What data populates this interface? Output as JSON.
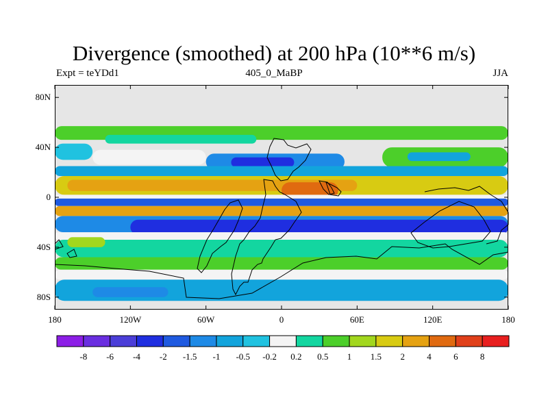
{
  "header": {
    "title": "Divergence (smoothed) at 200 hPa (10**6 m/s)",
    "left_label": "Expt = teYDd1",
    "center_label": "405_0_MaBP",
    "right_label": "JJA"
  },
  "chart_data": {
    "type": "heatmap",
    "title": "Divergence (smoothed) at 200 hPa (10**6 m/s)",
    "subtitle_left": "Expt = teYDd1",
    "subtitle_center": "405_0_MaBP",
    "subtitle_right": "JJA",
    "x_range": [
      -180,
      180
    ],
    "y_range": [
      -90,
      90
    ],
    "x_ticks": [
      {
        "value": -180,
        "label": "180"
      },
      {
        "value": -120,
        "label": "120W"
      },
      {
        "value": -60,
        "label": "60W"
      },
      {
        "value": 0,
        "label": "0"
      },
      {
        "value": 60,
        "label": "60E"
      },
      {
        "value": 120,
        "label": "120E"
      },
      {
        "value": 180,
        "label": "180"
      }
    ],
    "y_ticks": [
      {
        "value": 80,
        "label": "80N"
      },
      {
        "value": 40,
        "label": "40N"
      },
      {
        "value": 0,
        "label": "0"
      },
      {
        "value": -40,
        "label": "40S"
      },
      {
        "value": -80,
        "label": "80S"
      }
    ],
    "missing_color": "#e6e6e6",
    "contour_levels": [
      {
        "level": "-8",
        "color": "#8c1ee6"
      },
      {
        "level": "-6",
        "color": "#6a2ee0"
      },
      {
        "level": "-4",
        "color": "#4b3ed8"
      },
      {
        "level": "-2",
        "color": "#1f2ee0"
      },
      {
        "level": "-1.5",
        "color": "#1f5ae0"
      },
      {
        "level": "-1",
        "color": "#1e8ae6"
      },
      {
        "level": "-0.5",
        "color": "#12a4dc"
      },
      {
        "level": "-0.2",
        "color": "#20c2e0"
      },
      {
        "level": "0.2",
        "color": "#f4f4f4"
      },
      {
        "level": "0.5",
        "color": "#13d6a0"
      },
      {
        "level": "1",
        "color": "#4ccf2a"
      },
      {
        "level": "1.5",
        "color": "#a2d71e"
      },
      {
        "level": "2",
        "color": "#d8cb12"
      },
      {
        "level": "4",
        "color": "#e5a212"
      },
      {
        "level": "6",
        "color": "#e06a10"
      },
      {
        "level": "8",
        "color": "#e0401a"
      },
      {
        "level": "",
        "color": "#e81f1f"
      }
    ],
    "colorbar_labels": [
      "-8",
      "-6",
      "-4",
      "-2",
      "-1.5",
      "-1",
      "-0.5",
      "-0.2",
      "0.2",
      "0.5",
      "1",
      "1.5",
      "2",
      "4",
      "6",
      "8"
    ],
    "bands": [
      {
        "lat_top": 57,
        "lat_bottom": 46,
        "lon_from": -180,
        "lon_to": 180,
        "color": "#4ccf2a"
      },
      {
        "lat_top": 50,
        "lat_bottom": 43,
        "lon_from": -140,
        "lon_to": -20,
        "color": "#13d6a0"
      },
      {
        "lat_top": 43,
        "lat_bottom": 30,
        "lon_from": -180,
        "lon_to": -150,
        "color": "#20c2e0"
      },
      {
        "lat_top": 38,
        "lat_bottom": 26,
        "lon_from": -150,
        "lon_to": -60,
        "color": "#f4f4f4"
      },
      {
        "lat_top": 35,
        "lat_bottom": 22,
        "lon_from": -60,
        "lon_to": 50,
        "color": "#1e8ae6"
      },
      {
        "lat_top": 32,
        "lat_bottom": 24,
        "lon_from": -40,
        "lon_to": 10,
        "color": "#1f2ee0"
      },
      {
        "lat_top": 40,
        "lat_bottom": 24,
        "lon_from": 80,
        "lon_to": 180,
        "color": "#4ccf2a"
      },
      {
        "lat_top": 36,
        "lat_bottom": 29,
        "lon_from": 100,
        "lon_to": 150,
        "color": "#12a4dc"
      },
      {
        "lat_top": 25,
        "lat_bottom": 17,
        "lon_from": -180,
        "lon_to": 180,
        "color": "#12a4dc"
      },
      {
        "lat_top": 17,
        "lat_bottom": 2,
        "lon_from": -180,
        "lon_to": 180,
        "color": "#d8cb12"
      },
      {
        "lat_top": 14,
        "lat_bottom": 5,
        "lon_from": -170,
        "lon_to": 60,
        "color": "#e5a212"
      },
      {
        "lat_top": 12,
        "lat_bottom": -1,
        "lon_from": 0,
        "lon_to": 45,
        "color": "#e06a10"
      },
      {
        "lat_top": 2,
        "lat_bottom": -1,
        "lon_from": -180,
        "lon_to": 180,
        "color": "#f4f4f4"
      },
      {
        "lat_top": -1,
        "lat_bottom": -7,
        "lon_from": -180,
        "lon_to": 180,
        "color": "#1f5ae0"
      },
      {
        "lat_top": -7,
        "lat_bottom": -15,
        "lon_from": -180,
        "lon_to": 180,
        "color": "#e5a212"
      },
      {
        "lat_top": -15,
        "lat_bottom": -28,
        "lon_from": -180,
        "lon_to": 180,
        "color": "#1e8ae6"
      },
      {
        "lat_top": -18,
        "lat_bottom": -30,
        "lon_from": -120,
        "lon_to": 180,
        "color": "#1f2ee0"
      },
      {
        "lat_top": -28,
        "lat_bottom": -34,
        "lon_from": -180,
        "lon_to": 180,
        "color": "#f4f4f4"
      },
      {
        "lat_top": -34,
        "lat_bottom": -48,
        "lon_from": -180,
        "lon_to": 180,
        "color": "#13d6a0"
      },
      {
        "lat_top": -32,
        "lat_bottom": -40,
        "lon_from": -170,
        "lon_to": -140,
        "color": "#a2d71e"
      },
      {
        "lat_top": -48,
        "lat_bottom": -58,
        "lon_from": -180,
        "lon_to": 180,
        "color": "#4ccf2a"
      },
      {
        "lat_top": -58,
        "lat_bottom": -66,
        "lon_from": -180,
        "lon_to": 180,
        "color": "#f4f4f4"
      },
      {
        "lat_top": -66,
        "lat_bottom": -83,
        "lon_from": -180,
        "lon_to": 180,
        "color": "#12a4dc"
      },
      {
        "lat_top": -72,
        "lat_bottom": -80,
        "lon_from": -150,
        "lon_to": -90,
        "color": "#1e8ae6"
      }
    ]
  }
}
